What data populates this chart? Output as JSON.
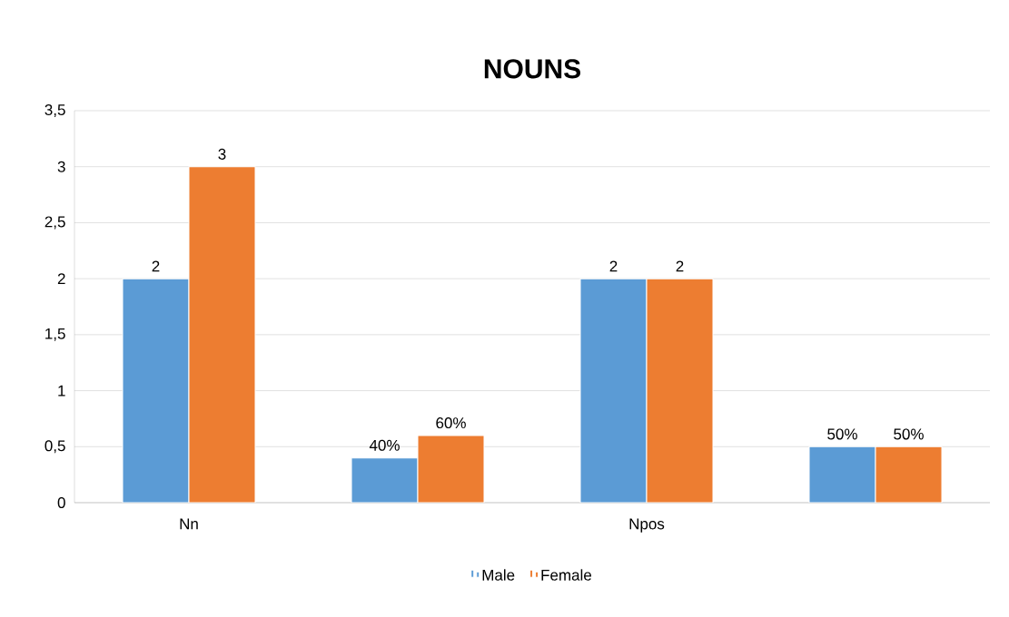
{
  "chart_data": {
    "type": "bar",
    "title": "NOUNS",
    "categories": [
      "Nn",
      null,
      "Npos",
      null
    ],
    "series": [
      {
        "name": "Male",
        "color": "#5b9bd5",
        "values": [
          2,
          0.4,
          2,
          0.5
        ],
        "value_labels": [
          "2",
          "40%",
          "2",
          "50%"
        ]
      },
      {
        "name": "Female",
        "color": "#ed7d31",
        "values": [
          3,
          0.6,
          2,
          0.5
        ],
        "value_labels": [
          "3",
          "60%",
          "2",
          "50%"
        ]
      }
    ],
    "ylim": [
      0,
      3.5
    ],
    "yticks": [
      0,
      {
        "value": 0.5,
        "label": "0,5"
      },
      1,
      {
        "value": 1.5,
        "label": "1,5"
      },
      2,
      {
        "value": 2.5,
        "label": "2,5"
      },
      3,
      {
        "value": 3.5,
        "label": "3,5"
      }
    ],
    "grid": "y",
    "legend": "bottom"
  }
}
